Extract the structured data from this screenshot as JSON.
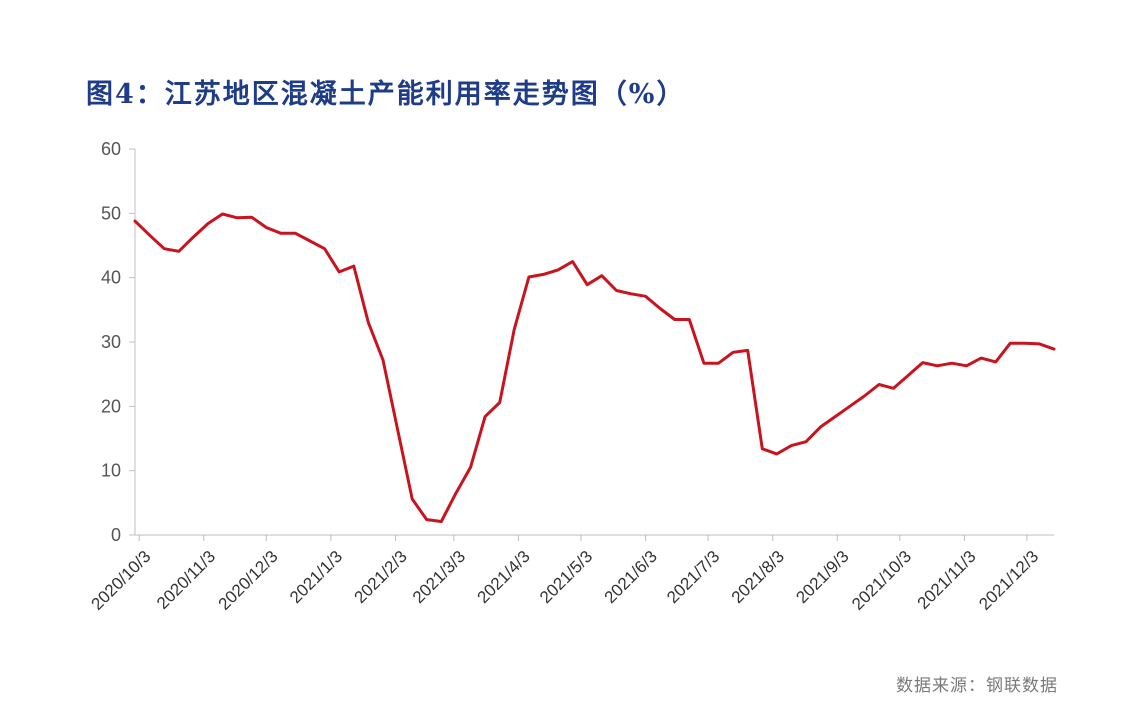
{
  "title": "图4：江苏地区混凝土产能利用率走势图（%）",
  "source": "数据来源：钢联数据",
  "colors": {
    "title": "#1f3c88",
    "line": "#c8141e",
    "axis": "#bfbfbf"
  },
  "chart_data": {
    "type": "line",
    "title": "图4：江苏地区混凝土产能利用率走势图（%）",
    "xlabel": "",
    "ylabel": "",
    "ylim": [
      0,
      60
    ],
    "yticks": [
      0,
      10,
      20,
      30,
      40,
      50,
      60
    ],
    "grid": false,
    "legend": "none",
    "x_tick_labels": [
      "2020/10/3",
      "2020/11/3",
      "2020/12/3",
      "2021/1/3",
      "2021/2/3",
      "2021/3/3",
      "2021/4/3",
      "2021/5/3",
      "2021/6/3",
      "2021/7/3",
      "2021/8/3",
      "2021/9/3",
      "2021/10/3",
      "2021/11/3",
      "2021/12/3"
    ],
    "series": [
      {
        "color": "#c8141e",
        "points": [
          [
            "2020-10-01",
            48.8
          ],
          [
            "2020-10-08",
            46.6
          ],
          [
            "2020-10-15",
            44.5
          ],
          [
            "2020-10-22",
            44.1
          ],
          [
            "2020-10-29",
            46.3
          ],
          [
            "2020-11-05",
            48.4
          ],
          [
            "2020-11-12",
            49.9
          ],
          [
            "2020-11-19",
            49.3
          ],
          [
            "2020-11-26",
            49.4
          ],
          [
            "2020-12-03",
            47.8
          ],
          [
            "2020-12-10",
            46.9
          ],
          [
            "2020-12-17",
            46.9
          ],
          [
            "2020-12-24",
            45.7
          ],
          [
            "2020-12-31",
            44.5
          ],
          [
            "2021-01-07",
            40.9
          ],
          [
            "2021-01-14",
            41.8
          ],
          [
            "2021-01-21",
            33.0
          ],
          [
            "2021-01-28",
            27.2
          ],
          [
            "2021-02-04",
            16.4
          ],
          [
            "2021-02-11",
            5.6
          ],
          [
            "2021-02-18",
            2.4
          ],
          [
            "2021-02-25",
            2.1
          ],
          [
            "2021-03-04",
            6.5
          ],
          [
            "2021-03-11",
            10.5
          ],
          [
            "2021-03-18",
            18.4
          ],
          [
            "2021-03-25",
            20.6
          ],
          [
            "2021-04-01",
            32.0
          ],
          [
            "2021-04-08",
            40.1
          ],
          [
            "2021-04-15",
            40.5
          ],
          [
            "2021-04-22",
            41.2
          ],
          [
            "2021-04-29",
            42.5
          ],
          [
            "2021-05-06",
            38.9
          ],
          [
            "2021-05-13",
            40.3
          ],
          [
            "2021-05-20",
            38.0
          ],
          [
            "2021-05-27",
            37.5
          ],
          [
            "2021-06-03",
            37.1
          ],
          [
            "2021-06-10",
            35.2
          ],
          [
            "2021-06-17",
            33.5
          ],
          [
            "2021-06-24",
            33.5
          ],
          [
            "2021-07-01",
            26.7
          ],
          [
            "2021-07-08",
            26.7
          ],
          [
            "2021-07-15",
            28.4
          ],
          [
            "2021-07-22",
            28.7
          ],
          [
            "2021-07-29",
            13.4
          ],
          [
            "2021-08-05",
            12.6
          ],
          [
            "2021-08-12",
            13.9
          ],
          [
            "2021-08-19",
            14.5
          ],
          [
            "2021-08-26",
            16.8
          ],
          [
            "2021-09-02",
            18.4
          ],
          [
            "2021-09-09",
            20.0
          ],
          [
            "2021-09-16",
            21.6
          ],
          [
            "2021-09-23",
            23.4
          ],
          [
            "2021-09-30",
            22.8
          ],
          [
            "2021-10-07",
            24.8
          ],
          [
            "2021-10-14",
            26.8
          ],
          [
            "2021-10-21",
            26.3
          ],
          [
            "2021-10-28",
            26.7
          ],
          [
            "2021-11-04",
            26.3
          ],
          [
            "2021-11-11",
            27.5
          ],
          [
            "2021-11-18",
            26.9
          ],
          [
            "2021-11-25",
            29.8
          ],
          [
            "2021-12-02",
            29.8
          ],
          [
            "2021-12-09",
            29.7
          ],
          [
            "2021-12-16",
            28.9
          ]
        ]
      }
    ]
  }
}
